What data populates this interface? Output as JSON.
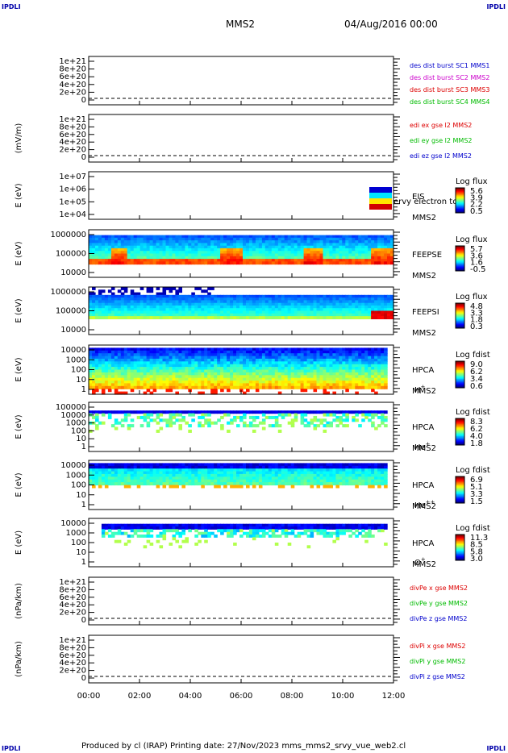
{
  "corners": {
    "tl": "IPDLI",
    "tr": "IPDLI",
    "bl": "IPDLI",
    "br": "IPDLI"
  },
  "header": {
    "spacecraft": "MMS2",
    "datetime": "04/Aug/2016 00:00"
  },
  "footer": {
    "text": "Produced by cl (IRAP)   Printing date: 27/Nov/2023   mms_mms2_srvy_vue_web2.cl"
  },
  "colors": {
    "blue": "#0000cc",
    "magenta": "#cc00cc",
    "red": "#dd0000",
    "green": "#00bb00"
  },
  "chart_data": {
    "type": "heatmap",
    "x_ticks": [
      "00:00",
      "02:00",
      "04:00",
      "06:00",
      "08:00",
      "10:00",
      "12:00"
    ],
    "panels": [
      {
        "id": "p1",
        "type": "line",
        "ylabel": "",
        "y_ticks": [
          "1e+21",
          "8e+20",
          "6e+20",
          "4e+20",
          "2e+20",
          "0"
        ],
        "legend": [
          {
            "text": "des dist burst SC1 MMS1",
            "color": "#0000cc"
          },
          {
            "text": "des dist burst SC2 MMS2",
            "color": "#cc00cc"
          },
          {
            "text": "des dist burst SC3 MMS3",
            "color": "#dd0000"
          },
          {
            "text": "des dist burst SC4 MMS4",
            "color": "#00bb00"
          }
        ]
      },
      {
        "id": "p2",
        "type": "line",
        "ylabel": "(mV/m)",
        "y_ticks": [
          "1e+21",
          "8e+20",
          "6e+20",
          "4e+20",
          "2e+20",
          "0"
        ],
        "legend": [
          {
            "text": "edi ex gse l2 MMS2",
            "color": "#dd0000"
          },
          {
            "text": "edi ey gse l2 MMS2",
            "color": "#00bb00"
          },
          {
            "text": "edi ez gse l2 MMS2",
            "color": "#0000cc"
          }
        ]
      },
      {
        "id": "p3",
        "type": "heatmap",
        "ylabel": "E (eV)",
        "y_ticks": [
          "1e+07",
          "1e+06",
          "1e+05",
          "1e+04"
        ],
        "labels": [
          "EIS",
          "MMS2"
        ],
        "overlay": "ervy electron to",
        "cbar_title": "Log flux",
        "cbar_ticks": [
          "5.6",
          "3.9",
          "2.2",
          "0.5"
        ]
      },
      {
        "id": "p4",
        "type": "heatmap",
        "ylabel": "E (eV)",
        "y_ticks": [
          "1000000",
          "100000",
          "10000"
        ],
        "labels": [
          "FEEPSE",
          "MMS2"
        ],
        "cbar_title": "Log flux",
        "cbar_ticks": [
          "5.7",
          "3.6",
          "1.6",
          "-0.5"
        ]
      },
      {
        "id": "p5",
        "type": "heatmap",
        "ylabel": "E (eV)",
        "y_ticks": [
          "1000000",
          "100000",
          "10000"
        ],
        "labels": [
          "FEEPSI",
          "MMS2"
        ],
        "cbar_title": "Log flux",
        "cbar_ticks": [
          "4.8",
          "3.3",
          "1.8",
          "0.3"
        ]
      },
      {
        "id": "p6",
        "type": "heatmap",
        "ylabel": "E (eV)",
        "y_ticks": [
          "10000",
          "1000",
          "100",
          "10",
          "1"
        ],
        "labels": [
          "HPCA",
          "MMS2"
        ],
        "species": "H",
        "charge": "+",
        "cbar_title": "Log fdist",
        "cbar_ticks": [
          "9.0",
          "6.2",
          "3.4",
          "0.6"
        ]
      },
      {
        "id": "p7",
        "type": "heatmap",
        "ylabel": "E (eV)",
        "y_ticks": [
          "100000",
          "10000",
          "1000",
          "100",
          "10",
          "1"
        ],
        "labels": [
          "HPCA",
          "MMS2"
        ],
        "species": "He",
        "charge": "+",
        "cbar_title": "Log fdist",
        "cbar_ticks": [
          "8.3",
          "6.2",
          "4.0",
          "1.8"
        ]
      },
      {
        "id": "p8",
        "type": "heatmap",
        "ylabel": "E (eV)",
        "y_ticks": [
          "10000",
          "1000",
          "100",
          "10",
          "1"
        ],
        "labels": [
          "HPCA",
          "MMS2"
        ],
        "species": "He",
        "charge": "++",
        "cbar_title": "Log fdist",
        "cbar_ticks": [
          "6.9",
          "5.1",
          "3.3",
          "1.5"
        ]
      },
      {
        "id": "p9",
        "type": "heatmap",
        "ylabel": "E (eV)",
        "y_ticks": [
          "10000",
          "1000",
          "100",
          "10",
          "1"
        ],
        "labels": [
          "HPCA",
          "MMS2"
        ],
        "species": "O",
        "charge": "+",
        "cbar_title": "Log fdist",
        "cbar_ticks": [
          "11.3",
          "8.5",
          "5.8",
          "3.0"
        ]
      },
      {
        "id": "p10",
        "type": "line",
        "ylabel": "(nPa/km)",
        "y_ticks": [
          "1e+21",
          "8e+20",
          "6e+20",
          "4e+20",
          "2e+20",
          "0"
        ],
        "legend": [
          {
            "text": "divPe x gse MMS2",
            "color": "#dd0000"
          },
          {
            "text": "divPe y gse MMS2",
            "color": "#00bb00"
          },
          {
            "text": "divPe z gse MMS2",
            "color": "#0000cc"
          }
        ]
      },
      {
        "id": "p11",
        "type": "line",
        "ylabel": "(nPa/km)",
        "y_ticks": [
          "1e+21",
          "8e+20",
          "6e+20",
          "4e+20",
          "2e+20",
          "0"
        ],
        "legend": [
          {
            "text": "divPi x gse MMS2",
            "color": "#dd0000"
          },
          {
            "text": "divPi y gse MMS2",
            "color": "#00bb00"
          },
          {
            "text": "divPi z gse MMS2",
            "color": "#0000cc"
          }
        ]
      }
    ]
  }
}
